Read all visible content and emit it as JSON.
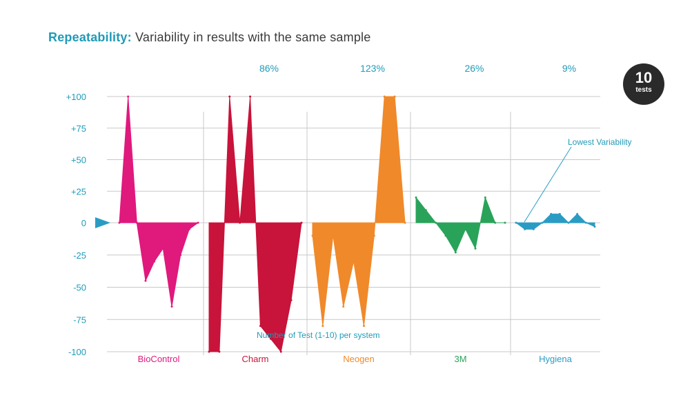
{
  "title": {
    "accent": "Repeatability:",
    "rest": " Variability in results with the same sample"
  },
  "badge": {
    "number": "10",
    "label": "tests"
  },
  "chart_data": {
    "type": "area",
    "ylabel": "",
    "xlabel": "Number of Test (1-10) per system",
    "ylim": [
      -100,
      100
    ],
    "yticks": [
      "+100",
      "+75",
      "+50",
      "+25",
      "0",
      "-25",
      "-50",
      "-75",
      "-100"
    ],
    "ytick_values": [
      100,
      75,
      50,
      25,
      0,
      -25,
      -50,
      -75,
      -100
    ],
    "annotation": "Lowest Variability",
    "grid": true,
    "colors": {
      "BioControl": "#e0197d",
      "Charm": "#c8133a",
      "Neogen": "#f0892a",
      "3M": "#2aa35a",
      "Hygiena": "#2a9cc4",
      "text": "#1f9bb8",
      "grid": "#c8c8c8"
    },
    "series": [
      {
        "name": "BioControl",
        "variability": "",
        "x": [
          1,
          2,
          3,
          4,
          5,
          6,
          7,
          8,
          9,
          10
        ],
        "values": [
          0,
          100,
          0,
          -45,
          -30,
          -20,
          -65,
          -25,
          -5,
          0
        ]
      },
      {
        "name": "Charm",
        "variability": "86%",
        "x": [
          1,
          2,
          3,
          4,
          5,
          6,
          7,
          8,
          9,
          10
        ],
        "values": [
          -100,
          -100,
          100,
          0,
          100,
          -80,
          -90,
          -100,
          -60,
          0
        ]
      },
      {
        "name": "Neogen",
        "variability": "123%",
        "x": [
          1,
          2,
          3,
          4,
          5,
          6,
          7,
          8,
          9,
          10
        ],
        "values": [
          -10,
          -80,
          -10,
          -65,
          -30,
          -80,
          -10,
          100,
          100,
          0
        ]
      },
      {
        "name": "3M",
        "variability": "26%",
        "x": [
          1,
          2,
          3,
          4,
          5,
          6,
          7,
          8,
          9,
          10
        ],
        "values": [
          20,
          10,
          0,
          -10,
          -23,
          -5,
          -20,
          20,
          0,
          0
        ]
      },
      {
        "name": "Hygiena",
        "variability": "9%",
        "x": [
          1,
          2,
          3,
          4,
          5,
          6,
          7,
          8,
          9,
          10
        ],
        "values": [
          0,
          -5,
          -5,
          0,
          7,
          7,
          0,
          7,
          0,
          -3
        ]
      }
    ]
  }
}
